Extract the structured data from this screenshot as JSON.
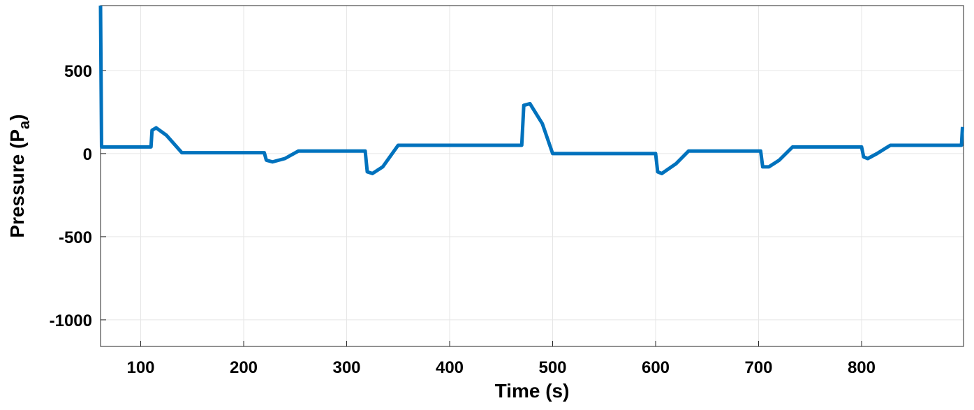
{
  "chart_data": {
    "type": "line",
    "xlabel": "Time (s)",
    "ylabel": {
      "main": "Pressure (P",
      "sub": "a",
      "end": ")"
    },
    "xlim": [
      61,
      899
    ],
    "ylim": [
      -1160,
      890
    ],
    "xticks": [
      100,
      200,
      300,
      400,
      500,
      600,
      700,
      800
    ],
    "yticks": [
      -1000,
      -500,
      0,
      500
    ],
    "grid": true,
    "series": [
      {
        "color": "#0072bd",
        "x": [
          61,
          62,
          110,
          111,
          115,
          125,
          140,
          220,
          222,
          228,
          240,
          253,
          318,
          320,
          325,
          335,
          350,
          470,
          472,
          478,
          490,
          500,
          600,
          602,
          606,
          620,
          632,
          702,
          704,
          710,
          720,
          733,
          800,
          802,
          806,
          815,
          828,
          897,
          898
        ],
        "values": [
          890,
          40,
          40,
          140,
          155,
          110,
          5,
          5,
          -40,
          -50,
          -30,
          15,
          15,
          -110,
          -120,
          -80,
          50,
          50,
          290,
          300,
          180,
          0,
          0,
          -110,
          -120,
          -60,
          15,
          15,
          -80,
          -80,
          -40,
          40,
          40,
          -20,
          -30,
          0,
          50,
          50,
          160
        ]
      }
    ]
  }
}
